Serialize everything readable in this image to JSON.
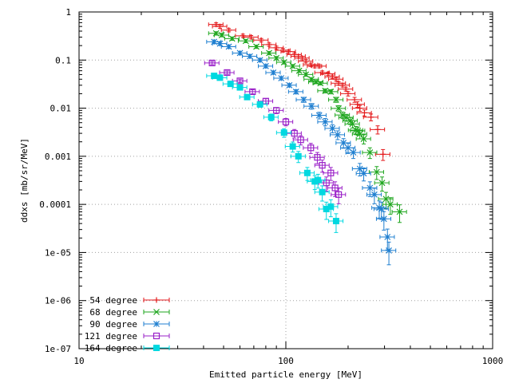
{
  "chart_data": {
    "type": "scatter",
    "xlabel": "Emitted particle energy [MeV]",
    "ylabel": "ddxs [mb/sr/MeV]",
    "x_scale": "log",
    "y_scale": "log",
    "xlim": [
      10,
      1000
    ],
    "ylim": [
      1e-07,
      1
    ],
    "grid": true,
    "legend_position": "bottom-left",
    "x_tick_labels": [
      "10",
      "100",
      "1000"
    ],
    "y_tick_labels": [
      "1",
      "0.1",
      "0.01",
      "0.001",
      "0.0001",
      "1e-05",
      "1e-06",
      "1e-07"
    ],
    "series": [
      {
        "name": "54 degree",
        "color": "#e41a1c",
        "marker": "plus",
        "x": [
          46,
          48,
          53,
          62,
          68,
          76,
          83,
          90,
          97,
          103,
          110,
          115,
          120,
          125,
          132,
          138,
          145,
          150,
          160,
          168,
          175,
          180,
          188,
          195,
          200,
          215,
          222,
          228,
          240,
          258,
          278,
          295
        ],
        "y": [
          0.55,
          0.5,
          0.42,
          0.32,
          0.3,
          0.26,
          0.21,
          0.18,
          0.16,
          0.15,
          0.13,
          0.12,
          0.11,
          0.095,
          0.08,
          0.075,
          0.075,
          0.055,
          0.052,
          0.045,
          0.04,
          0.033,
          0.03,
          0.025,
          0.02,
          0.015,
          0.012,
          0.01,
          0.008,
          0.0065,
          0.0036,
          0.0011
        ],
        "xerr_rel": 0.08
      },
      {
        "name": "68 degree",
        "color": "#1ea61e",
        "marker": "cross",
        "x": [
          46,
          49,
          55,
          64,
          72,
          83,
          90,
          98,
          108,
          116,
          125,
          133,
          140,
          147,
          155,
          165,
          175,
          180,
          188,
          196,
          205,
          210,
          218,
          223,
          228,
          238,
          255,
          275,
          292,
          305,
          320,
          355
        ],
        "y": [
          0.36,
          0.33,
          0.28,
          0.25,
          0.19,
          0.14,
          0.11,
          0.09,
          0.075,
          0.06,
          0.05,
          0.04,
          0.035,
          0.033,
          0.023,
          0.022,
          0.015,
          0.0099,
          0.0072,
          0.0064,
          0.0055,
          0.0047,
          0.0035,
          0.0034,
          0.0029,
          0.0023,
          0.0012,
          0.00047,
          0.00028,
          0.00013,
          0.0001,
          7e-05
        ],
        "xerr_rel": 0.08
      },
      {
        "name": "90 degree",
        "color": "#1f7fd0",
        "marker": "asterisk",
        "x": [
          45,
          48,
          53,
          60,
          67,
          75,
          80,
          87,
          95,
          104,
          112,
          122,
          133,
          145,
          155,
          168,
          178,
          190,
          200,
          212,
          228,
          238,
          255,
          268,
          283,
          290,
          298,
          310,
          315
        ],
        "y": [
          0.24,
          0.22,
          0.19,
          0.14,
          0.12,
          0.1,
          0.075,
          0.055,
          0.042,
          0.03,
          0.022,
          0.015,
          0.011,
          0.0071,
          0.0052,
          0.0038,
          0.0028,
          0.0019,
          0.0015,
          0.0012,
          0.00055,
          0.00044,
          0.00022,
          0.00016,
          8.5e-05,
          8e-05,
          5e-05,
          2.1e-05,
          1.1e-05
        ],
        "xerr_rel": 0.08
      },
      {
        "name": "121 degree",
        "color": "#9a20c8",
        "marker": "box",
        "x": [
          44,
          52,
          60,
          69,
          80,
          90,
          100,
          110,
          118,
          132,
          142,
          150,
          157,
          165,
          173,
          180
        ],
        "y": [
          0.087,
          0.055,
          0.037,
          0.022,
          0.014,
          0.009,
          0.0052,
          0.003,
          0.0022,
          0.0015,
          0.00095,
          0.00065,
          0.00028,
          0.00045,
          0.00022,
          0.00016
        ],
        "xerr_rel": 0.08
      },
      {
        "name": "164 degree",
        "color": "#00d8e0",
        "marker": "filled-box",
        "x": [
          45,
          48,
          54,
          60,
          65,
          75,
          85,
          98,
          108,
          115,
          127,
          138,
          143,
          150,
          157,
          165,
          175
        ],
        "y": [
          0.047,
          0.043,
          0.032,
          0.027,
          0.017,
          0.012,
          0.0065,
          0.0031,
          0.0016,
          0.001,
          0.00045,
          0.0003,
          0.00032,
          0.00018,
          8e-05,
          9e-05,
          4.5e-05
        ],
        "xerr_rel": 0.08
      }
    ]
  }
}
